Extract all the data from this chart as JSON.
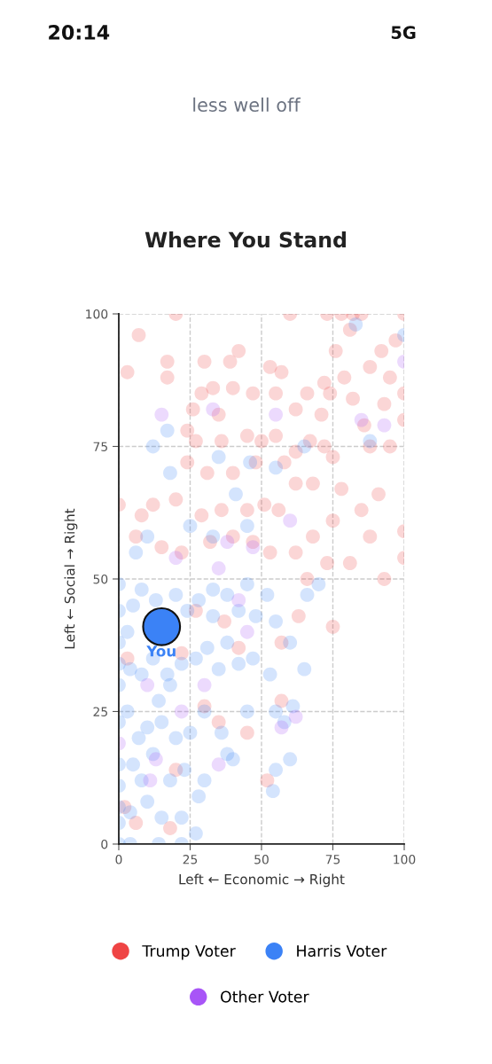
{
  "chart_data": {
    "type": "scatter",
    "title": "Where You Stand",
    "xlabel": "Left ← Economic → Right",
    "ylabel": "Left ← Social → Right",
    "xlim": [
      0,
      100
    ],
    "ylim": [
      0,
      100
    ],
    "xticks": [
      0,
      25,
      50,
      75,
      100
    ],
    "yticks": [
      0,
      25,
      50,
      75,
      100
    ],
    "grid": true,
    "legend": "bottom",
    "marker": "circle",
    "annotations": [
      "20:14",
      "5G",
      "less well off",
      {
        "text": "You",
        "x": 15,
        "y": 41
      }
    ],
    "series": [
      {
        "name": "Trump Voter",
        "color": "#ef4444",
        "x": [
          20,
          60,
          73,
          78,
          82,
          85,
          100,
          7,
          3,
          17,
          17,
          30,
          42,
          39,
          57,
          53,
          72,
          79,
          88,
          92,
          95,
          97,
          81,
          76,
          24,
          29,
          26,
          35,
          33,
          40,
          47,
          55,
          62,
          66,
          71,
          74,
          82,
          86,
          93,
          100,
          100,
          27,
          36,
          45,
          50,
          55,
          62,
          67,
          72,
          75,
          88,
          95,
          24,
          31,
          40,
          48,
          58,
          62,
          68,
          78,
          85,
          91,
          12,
          0,
          8,
          20,
          29,
          36,
          45,
          51,
          56,
          68,
          75,
          88,
          100,
          100,
          6,
          15,
          22,
          32,
          40,
          47,
          53,
          62,
          73,
          81,
          93,
          66,
          27,
          37,
          63,
          75,
          57,
          22,
          42,
          57,
          52,
          20,
          18,
          6,
          3,
          2,
          35,
          30,
          45
        ],
        "values": [
          100,
          100,
          100,
          100,
          100,
          100,
          100,
          96,
          89,
          91,
          88,
          91,
          93,
          91,
          89,
          90,
          87,
          88,
          90,
          93,
          88,
          95,
          97,
          93,
          78,
          85,
          82,
          81,
          86,
          86,
          85,
          85,
          82,
          85,
          81,
          85,
          84,
          79,
          83,
          85,
          80,
          76,
          76,
          77,
          76,
          77,
          74,
          76,
          75,
          73,
          75,
          75,
          72,
          70,
          70,
          72,
          72,
          68,
          68,
          67,
          63,
          66,
          64,
          64,
          62,
          65,
          62,
          63,
          63,
          64,
          63,
          58,
          61,
          58,
          59,
          54,
          58,
          56,
          55,
          57,
          58,
          57,
          55,
          55,
          53,
          53,
          50,
          50,
          44,
          42,
          43,
          41,
          38,
          36,
          37,
          27,
          12,
          14,
          3,
          4,
          35,
          7,
          23,
          26,
          21
        ]
      },
      {
        "name": "Harris Voter",
        "color": "#3b82f6",
        "x": [
          0,
          0,
          0,
          0,
          0,
          0,
          0,
          0,
          0,
          0,
          0,
          4,
          14,
          22,
          3,
          5,
          8,
          13,
          20,
          24,
          28,
          33,
          38,
          45,
          52,
          55,
          60,
          66,
          65,
          70,
          4,
          8,
          12,
          17,
          22,
          27,
          31,
          35,
          42,
          47,
          53,
          55,
          58,
          61,
          14,
          18,
          3,
          7,
          10,
          15,
          20,
          25,
          30,
          36,
          38,
          45,
          5,
          8,
          12,
          18,
          23,
          28,
          30,
          40,
          55,
          60,
          54,
          4,
          10,
          15,
          22,
          27,
          38,
          33,
          42,
          48,
          17,
          12,
          18,
          35,
          46,
          55,
          65,
          88,
          100,
          83,
          25,
          33,
          45,
          10,
          6,
          41
        ],
        "values": [
          49,
          44,
          38,
          34,
          30,
          23,
          15,
          11,
          7,
          4,
          0,
          0,
          0,
          0,
          40,
          45,
          48,
          46,
          47,
          44,
          46,
          48,
          47,
          49,
          47,
          42,
          38,
          47,
          33,
          49,
          33,
          32,
          35,
          32,
          34,
          35,
          37,
          33,
          34,
          35,
          32,
          25,
          23,
          26,
          27,
          30,
          25,
          20,
          22,
          23,
          20,
          21,
          25,
          21,
          17,
          25,
          15,
          12,
          17,
          12,
          14,
          9,
          12,
          16,
          14,
          16,
          10,
          6,
          8,
          5,
          5,
          2,
          38,
          43,
          44,
          43,
          78,
          75,
          70,
          73,
          72,
          71,
          75,
          76,
          96,
          98,
          60,
          58,
          60,
          58,
          55,
          66
        ]
      },
      {
        "name": "Other Voter",
        "color": "#a855f7",
        "x": [
          15,
          33,
          55,
          85,
          93,
          100,
          20,
          35,
          47,
          38,
          60,
          42,
          45,
          30,
          22,
          11,
          57,
          62,
          0,
          10,
          13,
          35
        ],
        "values": [
          81,
          82,
          81,
          80,
          79,
          91,
          54,
          52,
          56,
          57,
          61,
          46,
          40,
          30,
          25,
          12,
          22,
          24,
          19,
          30,
          16,
          15
        ]
      },
      {
        "type": "bubble",
        "color": "#3b82f6",
        "x": [
          15
        ],
        "values": [
          41
        ],
        "sizes": [
          1
        ]
      }
    ]
  }
}
